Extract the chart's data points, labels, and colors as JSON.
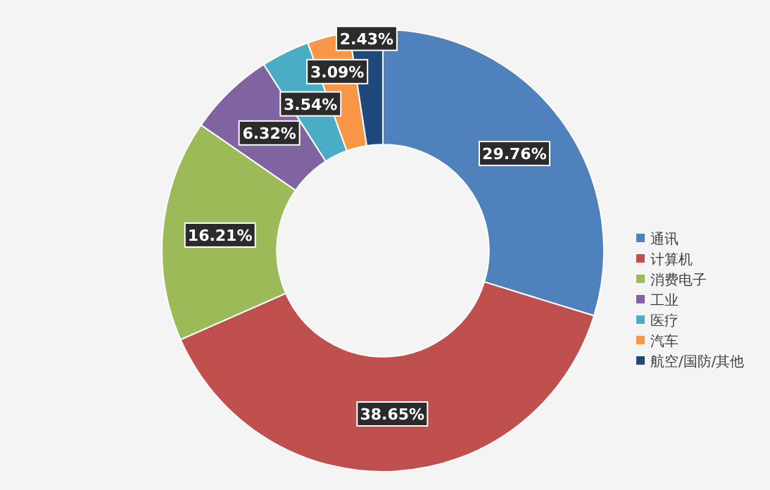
{
  "chart_data": {
    "type": "donut",
    "categories": [
      "通讯",
      "计算机",
      "消费电子",
      "工业",
      "医疗",
      "汽车",
      "航空/国防/其他"
    ],
    "values": [
      29.76,
      38.65,
      16.21,
      6.32,
      3.54,
      3.09,
      2.43
    ],
    "colors": [
      "#4f81bd",
      "#c0504d",
      "#9bbb59",
      "#8064a2",
      "#4bacc6",
      "#f79646",
      "#1f497d"
    ],
    "value_labels": [
      "29.76%",
      "38.65%",
      "16.21%",
      "6.32%",
      "3.54%",
      "3.09%",
      "2.43%"
    ],
    "legend": "right"
  }
}
